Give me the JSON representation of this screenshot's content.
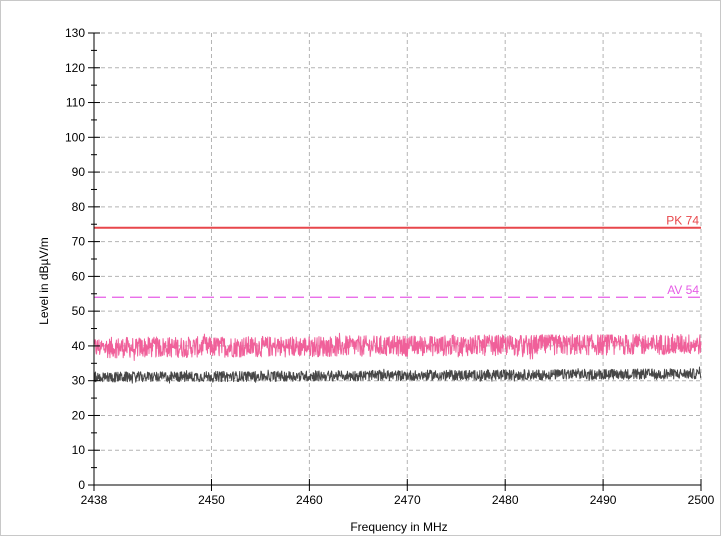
{
  "chart_data": {
    "type": "line",
    "xlabel": "Frequency in MHz",
    "ylabel": "Level in dBµV/m",
    "xlim": [
      2438,
      2500
    ],
    "ylim": [
      0,
      130
    ],
    "x_ticks": [
      "2438",
      "2450",
      "2460",
      "2470",
      "2480",
      "2490",
      "2500"
    ],
    "y_ticks": [
      "0",
      "10",
      "20",
      "30",
      "40",
      "50",
      "60",
      "70",
      "80",
      "90",
      "100",
      "110",
      "120",
      "130"
    ],
    "grid": true,
    "limit_lines": [
      {
        "label": "PK 74",
        "value": 74,
        "color": "#e8474b",
        "style": "solid"
      },
      {
        "label": "AV 54",
        "value": 54,
        "color": "#e65ce6",
        "style": "dashed"
      }
    ],
    "series": [
      {
        "trace": "peak",
        "color": "#f0609a",
        "x_start": 2438,
        "x_end": 2500,
        "start_level": 39.5,
        "end_level": 40.5,
        "band_low": 36,
        "band_high": 44
      },
      {
        "trace": "average",
        "color": "#474747",
        "x_start": 2438,
        "x_end": 2500,
        "start_level": 31,
        "end_level": 32,
        "band_low": 29.5,
        "band_high": 33.5
      }
    ]
  }
}
